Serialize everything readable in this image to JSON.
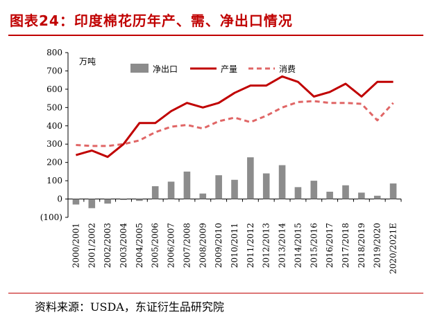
{
  "page": {
    "title": "图表24：印度棉花历年产、需、净出口情况",
    "source": "资料来源：USDA，东证衍生品研究院"
  },
  "chart_data": {
    "type": "bar",
    "unit": "万吨",
    "categories": [
      "2000/2001",
      "2001/2002",
      "2002/2003",
      "2003/2004",
      "2004/2005",
      "2005/2006",
      "2006/2007",
      "2007/2008",
      "2008/2009",
      "2009/2010",
      "2010/2011",
      "2011/2012",
      "2012/2013",
      "2013/2014",
      "2014/2015",
      "2015/2016",
      "2016/2017",
      "2017/2018",
      "2018/2019",
      "2019/2020",
      "2020/2021E"
    ],
    "yticks": [
      "800",
      "700",
      "600",
      "500",
      "400",
      "300",
      "200",
      "100",
      "0",
      "(100)"
    ],
    "ylim": [
      -100,
      800
    ],
    "legend_position": "top",
    "series": [
      {
        "name": "净出口",
        "type": "bar",
        "color": "#8c8c8c",
        "values": [
          -30,
          -50,
          -25,
          -5,
          -10,
          70,
          95,
          150,
          30,
          130,
          105,
          228,
          140,
          185,
          65,
          100,
          40,
          75,
          35,
          18,
          85
        ]
      },
      {
        "name": "产量",
        "type": "line",
        "color": "#c00000",
        "values": [
          240,
          265,
          230,
          300,
          415,
          415,
          480,
          525,
          500,
          525,
          580,
          620,
          620,
          670,
          640,
          560,
          585,
          630,
          560,
          640,
          640
        ]
      },
      {
        "name": "消费",
        "type": "line",
        "style": "dashed",
        "color": "#e06666",
        "values": [
          295,
          290,
          290,
          300,
          320,
          365,
          395,
          405,
          385,
          425,
          445,
          420,
          455,
          500,
          530,
          535,
          525,
          525,
          520,
          430,
          525
        ]
      }
    ]
  }
}
